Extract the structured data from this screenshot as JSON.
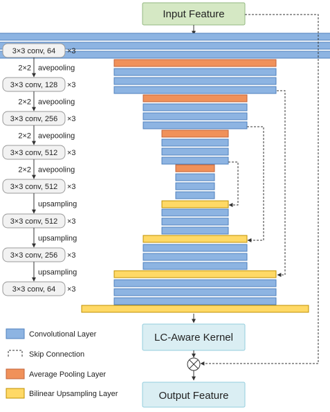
{
  "colors": {
    "conv": "#8DB4E2",
    "conv_border": "#4F81BD",
    "pool": "#F0915A",
    "pool_border": "#C0623A",
    "upsample": "#FFD966",
    "upsample_border": "#BF9000",
    "top_box": "#D5E8C4",
    "top_border": "#93B882",
    "kernel_box": "#DAEEF3",
    "kernel_border": "#93CDDD",
    "stage_box": "#F2F2F2",
    "stage_border": "#999999",
    "line": "#333333"
  },
  "input_feature": "Input Feature",
  "output_feature": "Output Feature",
  "kernel": "LC-Aware Kernel",
  "combine_symbol": "⊗",
  "stages": [
    {
      "label": "3×3 conv, 64",
      "rep": "×3",
      "transition": "2×2",
      "transition_op": "avepooling"
    },
    {
      "label": "3×3 conv, 128",
      "rep": "×3",
      "transition": "2×2",
      "transition_op": "avepooling"
    },
    {
      "label": "3×3 conv, 256",
      "rep": "×3",
      "transition": "2×2",
      "transition_op": "avepooling"
    },
    {
      "label": "3×3 conv, 512",
      "rep": "×3",
      "transition": "2×2",
      "transition_op": "avepooling"
    },
    {
      "label": "3×3 conv, 512",
      "rep": "×3",
      "transition": "",
      "transition_op": "upsampling"
    },
    {
      "label": "3×3 conv, 512",
      "rep": "×3",
      "transition": "",
      "transition_op": "upsampling"
    },
    {
      "label": "3×3 conv, 256",
      "rep": "×3",
      "transition": "",
      "transition_op": "upsampling"
    },
    {
      "label": "3×3 conv, 64",
      "rep": "×3",
      "transition": "",
      "transition_op": ""
    }
  ],
  "legend": [
    {
      "label": "Convolutional Layer",
      "kind": "conv"
    },
    {
      "label": "Skip Connection",
      "kind": "skip"
    },
    {
      "label": "Average Pooling Layer",
      "kind": "pool"
    },
    {
      "label": "Bilinear Upsampling Layer",
      "kind": "upsample"
    }
  ]
}
